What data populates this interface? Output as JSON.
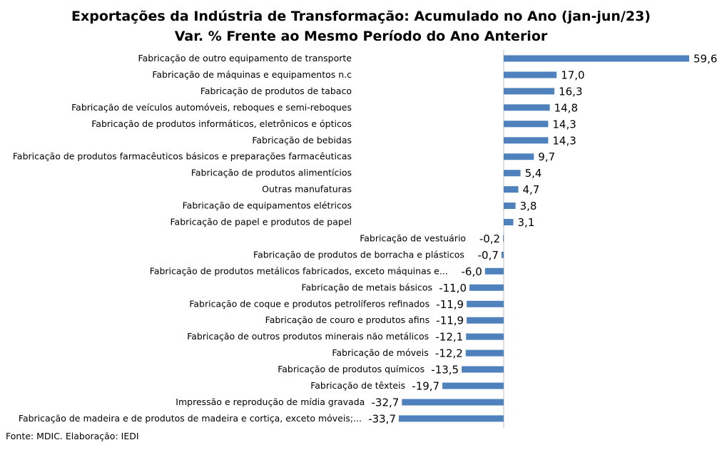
{
  "chart_data": {
    "type": "bar",
    "orientation": "horizontal",
    "title": "Exportações da Indústria de Transformação: Acumulado no Ano (jan-jun/23)",
    "subtitle": "Var. % Frente ao Mesmo Período do Ano Anterior",
    "categories": [
      "Fabricação de outro equipamento de transporte",
      "Fabricação de máquinas e equipamentos n.c",
      "Fabricação de produtos de tabaco",
      "Fabricação de veículos automóveis, reboques e semi-reboques",
      "Fabricação de produtos informáticos, eletrônicos e ópticos",
      "Fabricação de bebidas",
      "Fabricação de produtos farmacêuticos básicos e preparações farmacêuticas",
      "Fabricação de produtos alimentícios",
      "Outras manufaturas",
      "Fabricação de equipamentos elétricos",
      "Fabricação de papel e produtos de papel",
      "Fabricação de vestuário",
      "Fabricação de produtos de borracha e plásticos",
      "Fabricação de produtos metálicos fabricados, exceto máquinas e...",
      "Fabricação de metais básicos",
      "Fabricação de coque e produtos petrolíferos refinados",
      "Fabricação de couro e produtos afins",
      "Fabricação de outros produtos minerais não metálicos",
      "Fabricação de móveis",
      "Fabricação de produtos químicos",
      "Fabricação de têxteis",
      "Impressão e reprodução de mídia gravada",
      "Fabricação de madeira e de produtos de madeira e cortiça, exceto móveis;..."
    ],
    "values": [
      59.6,
      17.0,
      16.3,
      14.8,
      14.3,
      14.3,
      9.7,
      5.4,
      4.7,
      3.8,
      3.1,
      -0.2,
      -0.7,
      -6.0,
      -11.0,
      -11.9,
      -11.9,
      -12.1,
      -12.2,
      -13.5,
      -19.7,
      -32.7,
      -33.7
    ],
    "value_labels": [
      "59,6",
      "17,0",
      "16,3",
      "14,8",
      "14,3",
      "14,3",
      "9,7",
      "5,4",
      "4,7",
      "3,8",
      "3,1",
      "-0,2",
      "-0,7",
      "-6,0",
      "-11,0",
      "-11,9",
      "-11,9",
      "-12,1",
      "-12,2",
      "-13,5",
      "-19,7",
      "-32,7",
      "-33,7"
    ],
    "xlim": [
      -33.7,
      59.6
    ],
    "grid": false,
    "legend": "none",
    "bar_color": "#4F81BD",
    "axis_color": "#BFBFBF"
  },
  "source": "Fonte: MDIC. Elaboração: IEDI"
}
